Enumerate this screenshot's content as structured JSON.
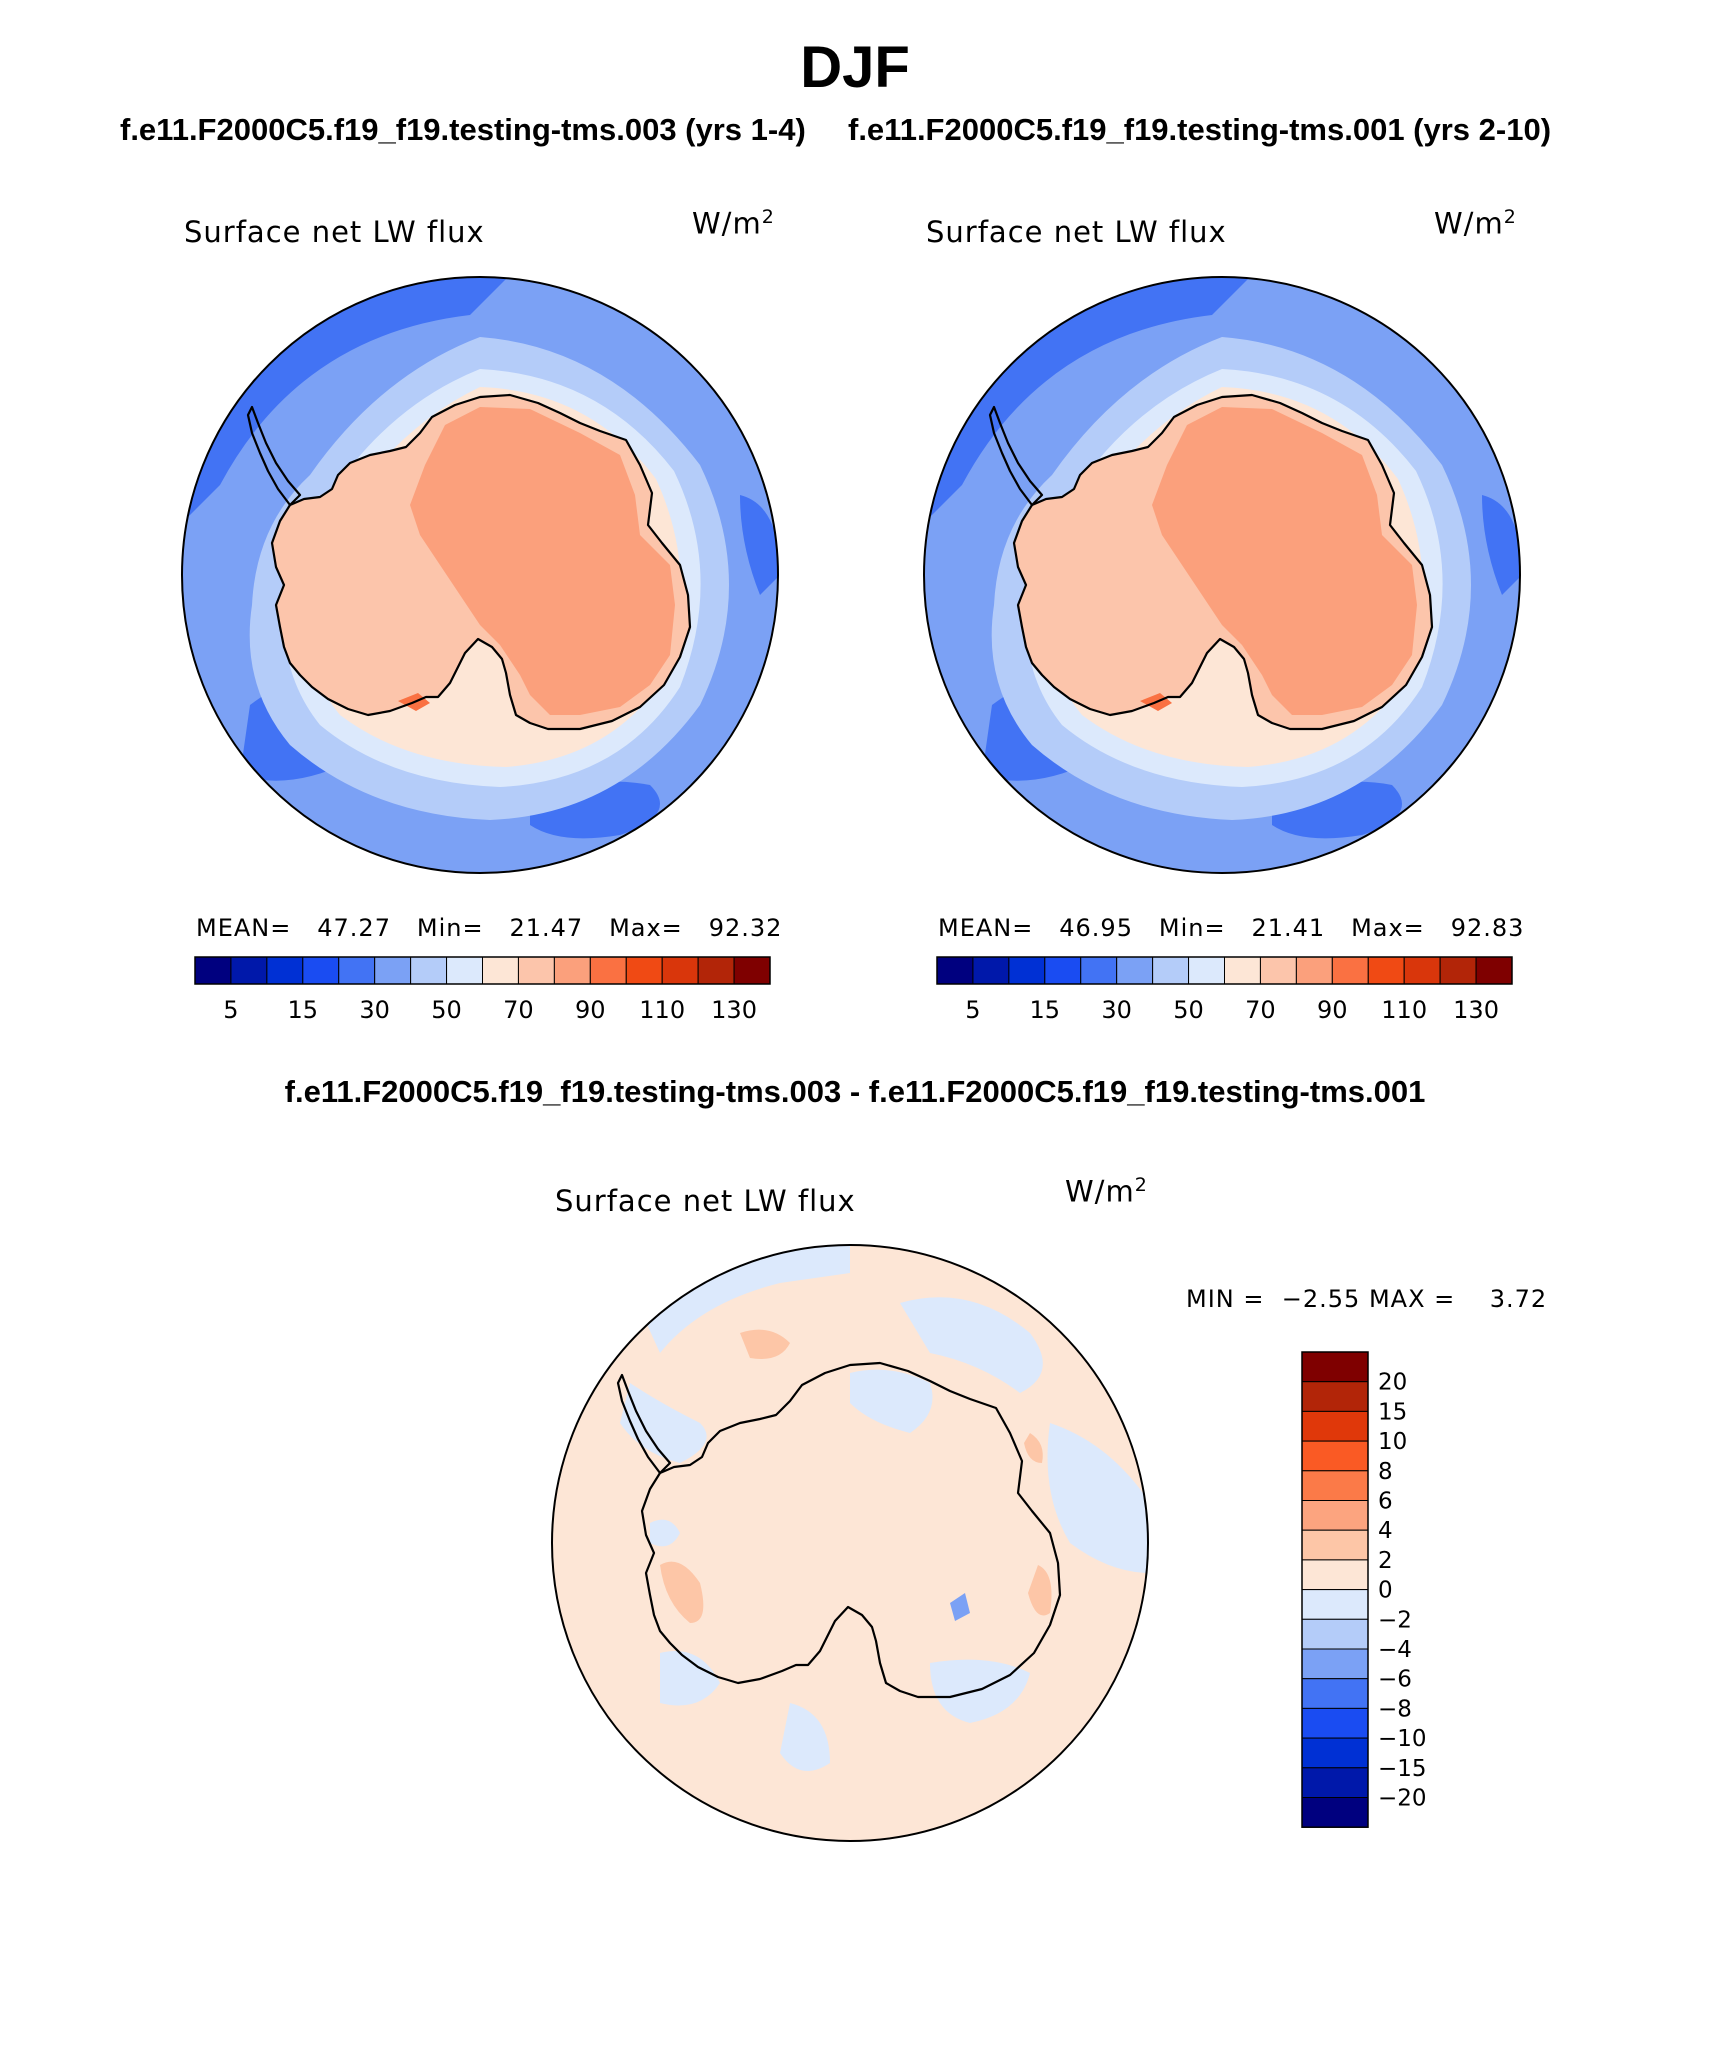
{
  "figure": {
    "title": "DJF",
    "case_a_title": "f.e11.F2000C5.f19_f19.testing-tms.003 (yrs 1-4)",
    "case_b_title": "f.e11.F2000C5.f19_f19.testing-tms.001 (yrs 2-10)",
    "diff_title": "f.e11.F2000C5.f19_f19.testing-tms.003 - f.e11.F2000C5.f19_f19.testing-tms.001"
  },
  "chart_data": [
    {
      "type": "heatmap",
      "projection": "south-polar-stereographic",
      "title": "Surface net LW flux",
      "units": "W/m",
      "units_exponent": "2",
      "stats": {
        "mean_label": "MEAN=",
        "mean": "47.27",
        "min_label": "Min=",
        "min": "21.47",
        "max_label": "Max=",
        "max": "92.32"
      },
      "colorbar": {
        "orientation": "horizontal",
        "levels": [
          0,
          5,
          10,
          15,
          20,
          30,
          40,
          50,
          60,
          70,
          80,
          90,
          100,
          110,
          120,
          130
        ],
        "tick_labels": [
          "5",
          "15",
          "30",
          "50",
          "70",
          "90",
          "110",
          "130"
        ],
        "colors": [
          "#00007f",
          "#0018aa",
          "#0030d4",
          "#1a4cf2",
          "#4273f4",
          "#7ba1f5",
          "#b4ccf9",
          "#dce9fc",
          "#fde6d6",
          "#fcc5ab",
          "#fba07c",
          "#fa7142",
          "#f04a14",
          "#d9360b",
          "#b22508",
          "#7f0000"
        ]
      },
      "fields": {
        "ocean_open": 30,
        "ocean_coastal": 40,
        "sea_ice_edge": 50,
        "coast": 60,
        "continent": 70,
        "interior": 80
      }
    },
    {
      "type": "heatmap",
      "projection": "south-polar-stereographic",
      "title": "Surface net LW flux",
      "units": "W/m",
      "units_exponent": "2",
      "stats": {
        "mean_label": "MEAN=",
        "mean": "46.95",
        "min_label": "Min=",
        "min": "21.41",
        "max_label": "Max=",
        "max": "92.83"
      },
      "colorbar": {
        "orientation": "horizontal",
        "levels": [
          0,
          5,
          10,
          15,
          20,
          30,
          40,
          50,
          60,
          70,
          80,
          90,
          100,
          110,
          120,
          130
        ],
        "tick_labels": [
          "5",
          "15",
          "30",
          "50",
          "70",
          "90",
          "110",
          "130"
        ],
        "colors": [
          "#00007f",
          "#0018aa",
          "#0030d4",
          "#1a4cf2",
          "#4273f4",
          "#7ba1f5",
          "#b4ccf9",
          "#dce9fc",
          "#fde6d6",
          "#fcc5ab",
          "#fba07c",
          "#fa7142",
          "#f04a14",
          "#d9360b",
          "#b22508",
          "#7f0000"
        ]
      },
      "fields": {
        "ocean_open": 30,
        "ocean_coastal": 40,
        "sea_ice_edge": 50,
        "coast": 60,
        "continent": 70,
        "interior": 80
      }
    },
    {
      "type": "heatmap",
      "projection": "south-polar-stereographic",
      "title": "Surface net LW flux",
      "units": "W/m",
      "units_exponent": "2",
      "stats": {
        "min_label": "MIN =",
        "min": "−2.55",
        "max_label": "MAX =",
        "max": "3.72"
      },
      "colorbar": {
        "orientation": "vertical",
        "levels": [
          -20,
          -15,
          -10,
          -8,
          -6,
          -4,
          -2,
          0,
          2,
          4,
          6,
          8,
          10,
          15,
          20
        ],
        "tick_labels": [
          "20",
          "15",
          "10",
          "8",
          "6",
          "4",
          "2",
          "0",
          "−2",
          "−4",
          "−6",
          "−8",
          "−10",
          "−15",
          "−20"
        ],
        "colors_top_to_bottom": [
          "#7f0000",
          "#b22508",
          "#e0380a",
          "#fa5a24",
          "#fb7a48",
          "#fca47f",
          "#fdc6a7",
          "#fde6d6",
          "#dce9fc",
          "#b4ccf9",
          "#7ba1f5",
          "#4273f4",
          "#1a4cf2",
          "#0030d4",
          "#0018aa",
          "#00007f"
        ]
      },
      "fields": {
        "background": 1,
        "negative_patch": -1,
        "positive_patch": 3
      }
    }
  ]
}
